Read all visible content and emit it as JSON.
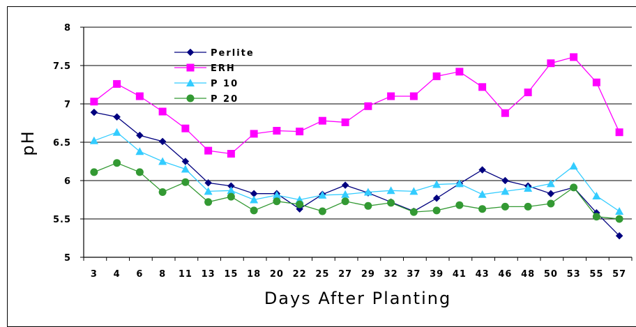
{
  "chart_data": {
    "type": "line",
    "title": "",
    "xlabel": "Days After Planting",
    "ylabel": "pH",
    "categories": [
      "3",
      "4",
      "6",
      "8",
      "11",
      "13",
      "15",
      "18",
      "20",
      "22",
      "25",
      "27",
      "29",
      "32",
      "37",
      "39",
      "41",
      "43",
      "46",
      "48",
      "50",
      "53",
      "55",
      "57"
    ],
    "ylim": [
      5,
      8
    ],
    "yticks": [
      "5",
      "5.5",
      "6",
      "6.5",
      "7",
      "7.5",
      "8"
    ],
    "grid": "horizontal",
    "legend_position": "top-left",
    "series": [
      {
        "name": "Perlite",
        "color": "#00007f",
        "marker": "diamond",
        "values": [
          6.89,
          6.83,
          6.59,
          6.51,
          6.25,
          5.97,
          5.93,
          5.83,
          5.83,
          5.63,
          5.82,
          5.94,
          5.84,
          5.72,
          5.6,
          5.77,
          5.96,
          6.14,
          6.0,
          5.93,
          5.83,
          5.91,
          5.58,
          5.28
        ]
      },
      {
        "name": "ERH",
        "color": "#ff00ff",
        "marker": "square",
        "values": [
          7.03,
          7.26,
          7.1,
          6.9,
          6.68,
          6.39,
          6.35,
          6.61,
          6.65,
          6.64,
          6.78,
          6.76,
          6.97,
          7.1,
          7.1,
          7.36,
          7.42,
          7.22,
          6.88,
          7.15,
          7.53,
          7.61,
          7.28,
          6.63
        ]
      },
      {
        "name": "P 10",
        "color": "#33ccff",
        "marker": "triangle",
        "values": [
          6.52,
          6.63,
          6.38,
          6.25,
          6.15,
          5.86,
          5.87,
          5.75,
          5.81,
          5.75,
          5.81,
          5.82,
          5.85,
          5.87,
          5.86,
          5.95,
          5.96,
          5.82,
          5.86,
          5.9,
          5.96,
          6.19,
          5.8,
          5.6
        ]
      },
      {
        "name": "P 20",
        "color": "#339933",
        "marker": "circle",
        "values": [
          6.11,
          6.23,
          6.11,
          5.85,
          5.98,
          5.72,
          5.79,
          5.61,
          5.73,
          5.69,
          5.6,
          5.73,
          5.67,
          5.71,
          5.59,
          5.61,
          5.68,
          5.63,
          5.66,
          5.66,
          5.7,
          5.91,
          5.53,
          5.5
        ]
      }
    ]
  }
}
